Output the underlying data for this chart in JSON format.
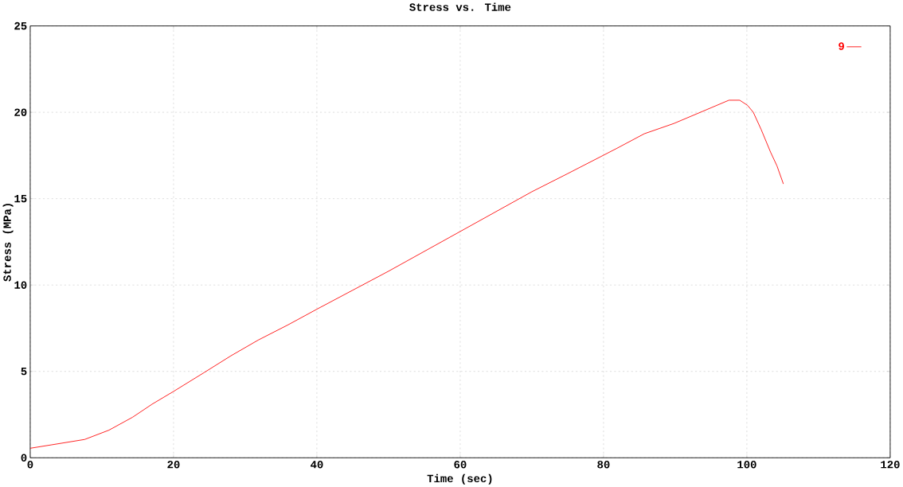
{
  "chart_data": {
    "type": "line",
    "title": "Stress vs. Time",
    "xlabel": "Time (sec)",
    "ylabel": "Stress (MPa)",
    "xlim": [
      0,
      120
    ],
    "ylim": [
      0,
      25
    ],
    "xticks": [
      0,
      20,
      40,
      60,
      80,
      100,
      120
    ],
    "yticks": [
      0,
      5,
      10,
      15,
      20,
      25
    ],
    "grid": true,
    "legend": "top right",
    "marker": "none",
    "line_style": "solid",
    "series": [
      {
        "name": "9",
        "color": "#ff0000",
        "x": [
          0,
          3,
          7.6,
          11,
          14.3,
          17,
          20,
          24.3,
          28,
          31.8,
          36,
          40,
          45,
          50,
          55,
          60,
          65,
          70,
          75,
          81.8,
          85.7,
          89.8,
          93.8,
          97.5,
          99.0,
          100.1,
          100.9,
          102,
          103.3,
          104.2,
          105.1
        ],
        "values": [
          0.55,
          0.75,
          1.06,
          1.6,
          2.35,
          3.1,
          3.84,
          4.94,
          5.9,
          6.81,
          7.7,
          8.6,
          9.7,
          10.8,
          11.95,
          13.1,
          14.25,
          15.4,
          16.45,
          17.9,
          18.76,
          19.35,
          20.05,
          20.7,
          20.7,
          20.4,
          20.0,
          19.0,
          17.7,
          16.9,
          15.85
        ]
      }
    ]
  }
}
